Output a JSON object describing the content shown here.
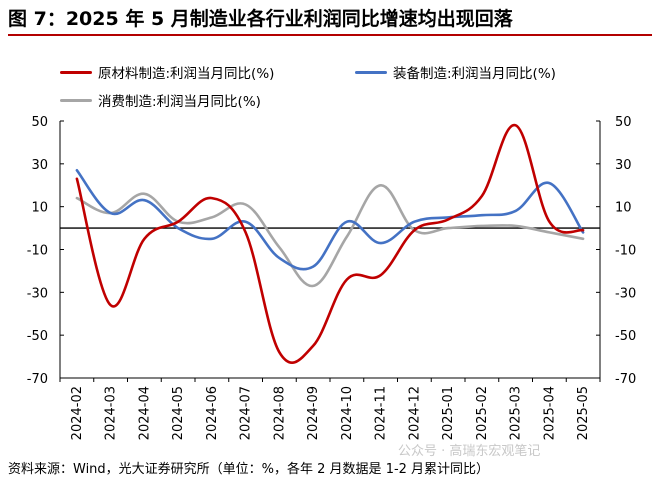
{
  "figure": {
    "title": "图 7：2025 年 5 月制造业各行业利润同比增速均出现回落",
    "source": "资料来源：Wind，光大证券研究所（单位：%，各年 2 月数据是 1-2 月累计同比）",
    "watermark": "公众号 · 高瑞东宏观笔记"
  },
  "chart_data": {
    "type": "line",
    "categories": [
      "2024-02",
      "2024-03",
      "2024-04",
      "2024-05",
      "2024-06",
      "2024-07",
      "2024-08",
      "2024-09",
      "2024-10",
      "2024-11",
      "2024-12",
      "2025-01",
      "2025-02",
      "2025-03",
      "2025-04",
      "2025-05"
    ],
    "ylim": [
      -70,
      50
    ],
    "yticks": [
      50,
      30,
      10,
      -10,
      -30,
      -50,
      -70
    ],
    "grid": false,
    "legend_position": "top",
    "series": [
      {
        "name": "原材料制造:利润当月同比(%)",
        "color": "#c00000",
        "values": [
          23,
          -36,
          -5,
          3,
          14,
          -2,
          -58,
          -55,
          -24,
          -22,
          -1,
          4,
          15,
          48,
          3,
          -1
        ]
      },
      {
        "name": "装备制造:利润当月同比(%)",
        "color": "#4472c4",
        "values": [
          27,
          7,
          13,
          0,
          -5,
          3,
          -14,
          -18,
          3,
          -7,
          3,
          5,
          6,
          8,
          21,
          -2
        ]
      },
      {
        "name": "消费制造:利润当月同比(%)",
        "color": "#a6a6a6",
        "values": [
          14,
          7,
          16,
          3,
          5,
          11,
          -9,
          -27,
          -4,
          20,
          -1,
          0,
          1,
          1,
          -2,
          -5
        ]
      }
    ]
  }
}
